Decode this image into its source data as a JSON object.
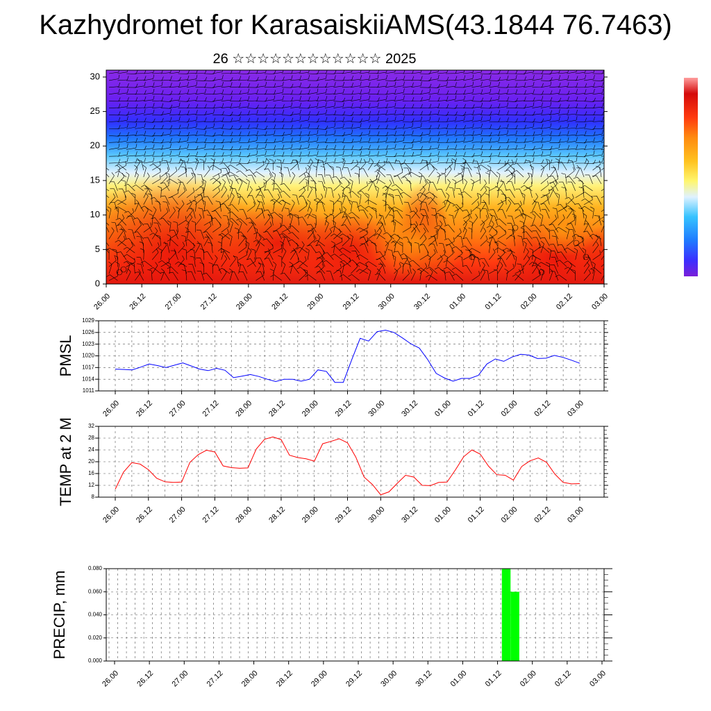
{
  "header": {
    "title": "Kazhydromet for KarasaiskiiAMS(43.1844 76.7463)",
    "subtitle": "26 ☆☆☆☆☆☆☆☆☆☆☆☆ 2025"
  },
  "colors": {
    "pmsl_line": "#0000ff",
    "temp_line": "#ff0000",
    "precip_bar": "#00ff00",
    "wind_barb": "#000000"
  },
  "chart_data": [
    {
      "type": "heatmap",
      "title": "",
      "ylabel": "",
      "yticks": [
        0,
        5,
        10,
        15,
        20,
        25,
        30
      ],
      "ylim": [
        0,
        31
      ],
      "x_tick_labels": [
        "26.00",
        "26.12",
        "27.00",
        "27.12",
        "28.00",
        "28.12",
        "29.00",
        "29.12",
        "30.00",
        "30.12",
        "01.00",
        "01.12",
        "02.00",
        "02.12",
        "03.00"
      ],
      "overlay": "wind-barbs",
      "colorbar": {
        "placement": "right",
        "colors": [
          "#7a1fd9",
          "#3b2fff",
          "#1f7aff",
          "#36c3ff",
          "#dff2ff",
          "#fff66e",
          "#ffc21f",
          "#ff8a0f",
          "#ff3a0f",
          "#d40a0a",
          "#ff9e9e"
        ]
      }
    },
    {
      "type": "line",
      "ylabel": "PMSL",
      "ylim": [
        1011,
        1029
      ],
      "yticks": [
        1011,
        1014,
        1017,
        1020,
        1023,
        1026,
        1029
      ],
      "x_tick_labels": [
        "26.00",
        "26.12",
        "27.00",
        "27.12",
        "28.00",
        "28.12",
        "29.00",
        "29.12",
        "30.00",
        "30.12",
        "01.00",
        "01.12",
        "02.00",
        "02.12",
        "03.00"
      ],
      "series": [
        {
          "values": [
            1016.6,
            1016.5,
            1016.4,
            1017.1,
            1017.9,
            1017.5,
            1017,
            1017.6,
            1018.2,
            1017.4,
            1016.6,
            1016.2,
            1016.8,
            1016.3,
            1014.4,
            1014.8,
            1015.2,
            1014.7,
            1014,
            1013.4,
            1014,
            1014,
            1013.5,
            1014,
            1016.4,
            1016,
            1013.2,
            1013.2,
            1019,
            1024.5,
            1023.8,
            1026.2,
            1026.6,
            1026,
            1024.6,
            1023.1,
            1022,
            1019,
            1015.5,
            1014.3,
            1013.5,
            1014.2,
            1014.2,
            1015,
            1017.9,
            1019.2,
            1018.6,
            1019.7,
            1020.4,
            1020.2,
            1019.3,
            1019.4,
            1020.1,
            1019.6,
            1018.9,
            1018.1
          ]
        }
      ]
    },
    {
      "type": "line",
      "ylabel": "TEMP at 2 M",
      "ylim": [
        8,
        32
      ],
      "yticks": [
        8,
        12,
        16,
        20,
        24,
        28,
        32
      ],
      "x_tick_labels": [
        "26.00",
        "26.12",
        "27.00",
        "27.12",
        "28.00",
        "28.12",
        "29.00",
        "29.12",
        "30.00",
        "30.12",
        "01.00",
        "01.12",
        "02.00",
        "02.12",
        "03.00"
      ],
      "series": [
        {
          "values": [
            10.7,
            16.5,
            19.7,
            19.2,
            17.3,
            14.4,
            13.2,
            13,
            13.1,
            19.8,
            22.4,
            23.9,
            23.3,
            18.6,
            18,
            17.8,
            17.9,
            24.3,
            27.6,
            28.4,
            27.5,
            22.2,
            21.4,
            21,
            20.2,
            26.1,
            26.9,
            27.8,
            26.4,
            21.6,
            14.8,
            12.3,
            8.8,
            9.8,
            12.7,
            15.4,
            14.8,
            12,
            11.9,
            13,
            13.1,
            17.2,
            21.7,
            24,
            22.6,
            18.5,
            15.6,
            15.4,
            13.8,
            18.4,
            20.3,
            21.3,
            19.8,
            15.8,
            13,
            12.5,
            12.6
          ]
        }
      ]
    },
    {
      "type": "bar",
      "ylabel": "PRECIP, mm",
      "ylim": [
        0,
        0.08
      ],
      "ytick_labels": [
        "0.000",
        "0.020",
        "0.040",
        "0.060",
        "0.080"
      ],
      "x_tick_labels": [
        "26.00",
        "26.12",
        "27.00",
        "27.12",
        "28.00",
        "28.12",
        "29.00",
        "29.12",
        "30.00",
        "30.12",
        "01.00",
        "01.12",
        "02.00",
        "02.12",
        "03.00"
      ],
      "bars": [
        {
          "x": "01.12",
          "offset_hours": 3,
          "value": 0.08
        },
        {
          "x": "01.12",
          "offset_hours": 6,
          "value": 0.06
        }
      ]
    }
  ]
}
